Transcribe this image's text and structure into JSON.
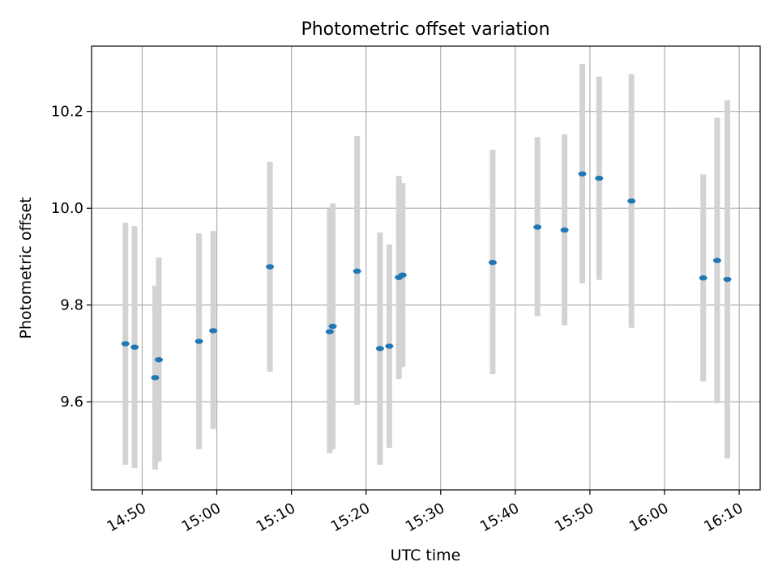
{
  "chart_data": {
    "type": "scatter",
    "title": "Photometric offset variation",
    "xlabel": "UTC time",
    "ylabel": "Photometric offset",
    "x_is_time": true,
    "xlim": [
      "14:43:13",
      "16:12:49"
    ],
    "ylim": [
      9.418,
      10.335
    ],
    "grid": true,
    "x_ticks": [
      "14:50",
      "15:00",
      "15:10",
      "15:20",
      "15:30",
      "15:40",
      "15:50",
      "16:00",
      "16:10"
    ],
    "y_ticks": [
      9.6,
      9.8,
      10.0,
      10.2
    ],
    "y_tick_labels": [
      "9.6",
      "9.8",
      "10.0",
      "10.2"
    ],
    "colors": {
      "marker": "#1f77b4",
      "errorbar": "#d3d3d3",
      "grid": "#b0b0b0"
    },
    "points": [
      {
        "x": "14:47:45",
        "y": 9.72,
        "ylow": 9.47,
        "yhigh": 9.97
      },
      {
        "x": "14:48:59",
        "y": 9.713,
        "ylow": 9.463,
        "yhigh": 9.963
      },
      {
        "x": "14:51:44",
        "y": 9.65,
        "ylow": 9.46,
        "yhigh": 9.84
      },
      {
        "x": "14:52:14",
        "y": 9.687,
        "ylow": 9.476,
        "yhigh": 9.898
      },
      {
        "x": "14:57:37",
        "y": 9.725,
        "ylow": 9.502,
        "yhigh": 9.948
      },
      {
        "x": "14:59:31",
        "y": 9.747,
        "ylow": 9.544,
        "yhigh": 9.953
      },
      {
        "x": "15:07:07",
        "y": 9.879,
        "ylow": 9.662,
        "yhigh": 10.096
      },
      {
        "x": "15:15:08",
        "y": 9.745,
        "ylow": 9.494,
        "yhigh": 9.999
      },
      {
        "x": "15:15:32",
        "y": 9.756,
        "ylow": 9.502,
        "yhigh": 10.01
      },
      {
        "x": "15:18:48",
        "y": 9.87,
        "ylow": 9.594,
        "yhigh": 10.149
      },
      {
        "x": "15:21:52",
        "y": 9.71,
        "ylow": 9.47,
        "yhigh": 9.95
      },
      {
        "x": "15:23:07",
        "y": 9.715,
        "ylow": 9.505,
        "yhigh": 9.925
      },
      {
        "x": "15:24:24",
        "y": 9.857,
        "ylow": 9.647,
        "yhigh": 10.067
      },
      {
        "x": "15:24:54",
        "y": 9.862,
        "ylow": 9.672,
        "yhigh": 10.052
      },
      {
        "x": "15:36:58",
        "y": 9.888,
        "ylow": 9.657,
        "yhigh": 10.121
      },
      {
        "x": "15:42:58",
        "y": 9.961,
        "ylow": 9.777,
        "yhigh": 10.147
      },
      {
        "x": "15:46:36",
        "y": 9.955,
        "ylow": 9.758,
        "yhigh": 10.153
      },
      {
        "x": "15:48:59",
        "y": 10.071,
        "ylow": 9.845,
        "yhigh": 10.298
      },
      {
        "x": "15:51:14",
        "y": 10.062,
        "ylow": 9.852,
        "yhigh": 10.272
      },
      {
        "x": "15:55:34",
        "y": 10.015,
        "ylow": 9.753,
        "yhigh": 10.277
      },
      {
        "x": "16:05:11",
        "y": 9.856,
        "ylow": 9.642,
        "yhigh": 10.07
      },
      {
        "x": "16:07:03",
        "y": 9.892,
        "ylow": 9.597,
        "yhigh": 10.187
      },
      {
        "x": "16:08:25",
        "y": 9.853,
        "ylow": 9.483,
        "yhigh": 10.223
      }
    ]
  }
}
